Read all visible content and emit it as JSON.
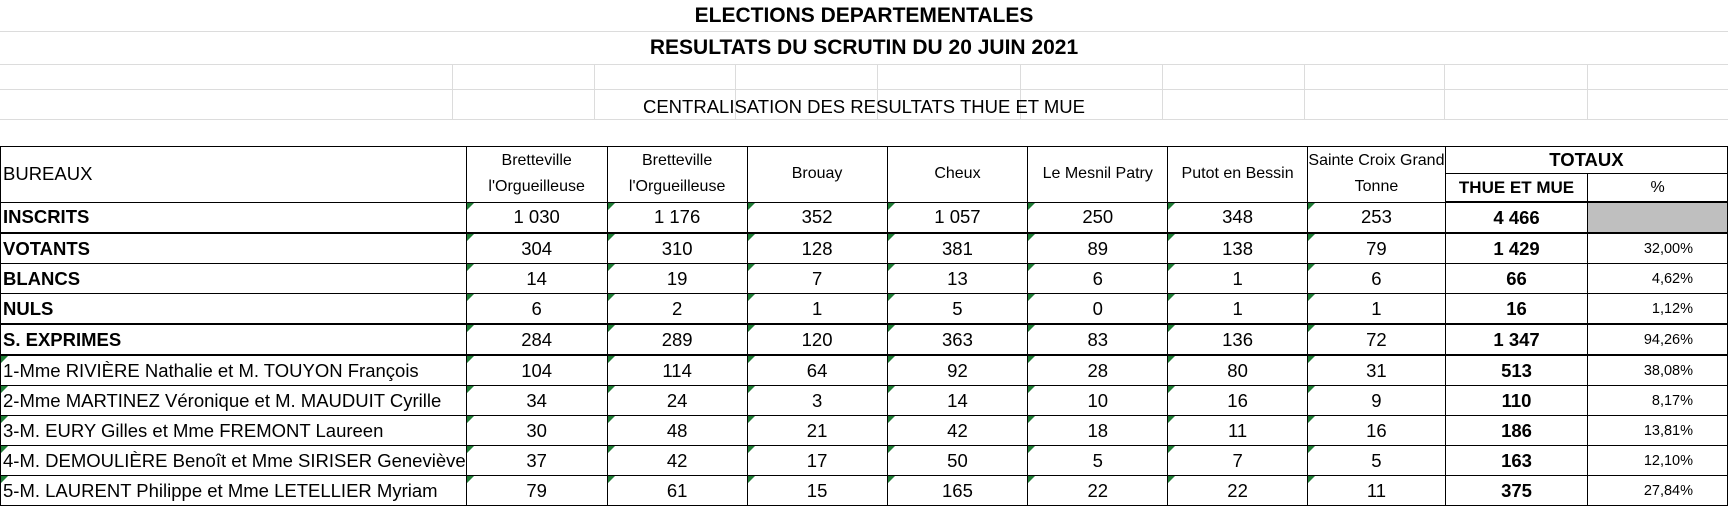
{
  "title_line1": "ELECTIONS DEPARTEMENTALES",
  "title_line2": "RESULTATS DU SCRUTIN DU 20 JUIN 2021",
  "caption": "CENTRALISATION DES RESULTATS THUE ET MUE",
  "header": {
    "row_label": "BUREAUX",
    "columns": [
      "Bretteville l'Orgueilleuse",
      "Bretteville l'Orgueilleuse",
      "Brouay",
      "Cheux",
      "Le Mesnil Patry",
      "Putot en Bessin",
      "Sainte Croix Grand Tonne"
    ],
    "totals": "TOTAUX",
    "total_col": "THUE ET MUE",
    "pct_col": "%"
  },
  "rows": [
    {
      "label": "INSCRITS",
      "bold": true,
      "values": [
        "1 030",
        "1 176",
        "352",
        "1 057",
        "250",
        "348",
        "253"
      ],
      "total": "4 466",
      "pct": "",
      "heavy": true
    },
    {
      "label": "VOTANTS",
      "bold": true,
      "values": [
        "304",
        "310",
        "128",
        "381",
        "89",
        "138",
        "79"
      ],
      "total": "1 429",
      "pct": "32,00%",
      "heavy": false
    },
    {
      "label": "BLANCS",
      "bold": true,
      "values": [
        "14",
        "19",
        "7",
        "13",
        "6",
        "1",
        "6"
      ],
      "total": "66",
      "pct": "4,62%",
      "heavy": false
    },
    {
      "label": "NULS",
      "bold": true,
      "values": [
        "6",
        "2",
        "1",
        "5",
        "0",
        "1",
        "1"
      ],
      "total": "16",
      "pct": "1,12%",
      "heavy": true
    },
    {
      "label": "S. EXPRIMES",
      "bold": true,
      "values": [
        "284",
        "289",
        "120",
        "363",
        "83",
        "136",
        "72"
      ],
      "total": "1 347",
      "pct": "94,26%",
      "heavy": true
    },
    {
      "label": "1-Mme RIVIÈRE Nathalie et M. TOUYON François",
      "bold": false,
      "values": [
        "104",
        "114",
        "64",
        "92",
        "28",
        "80",
        "31"
      ],
      "total": "513",
      "pct": "38,08%",
      "heavy": false
    },
    {
      "label": "2-Mme MARTINEZ Véronique et M. MAUDUIT Cyrille",
      "bold": false,
      "values": [
        "34",
        "24",
        "3",
        "14",
        "10",
        "16",
        "9"
      ],
      "total": "110",
      "pct": "8,17%",
      "heavy": false
    },
    {
      "label": "3-M. EURY Gilles et Mme FREMONT Laureen",
      "bold": false,
      "values": [
        "30",
        "48",
        "21",
        "42",
        "18",
        "11",
        "16"
      ],
      "total": "186",
      "pct": "13,81%",
      "heavy": false
    },
    {
      "label": "4-M. DEMOULIÈRE Benoît et Mme SIRISER Geneviève",
      "bold": false,
      "values": [
        "37",
        "42",
        "17",
        "50",
        "5",
        "7",
        "5"
      ],
      "total": "163",
      "pct": "12,10%",
      "heavy": false
    },
    {
      "label": "5-M. LAURENT Philippe et Mme LETELLIER Myriam",
      "bold": false,
      "values": [
        "79",
        "61",
        "15",
        "165",
        "22",
        "22",
        "11"
      ],
      "total": "375",
      "pct": "27,84%",
      "heavy": false
    }
  ]
}
